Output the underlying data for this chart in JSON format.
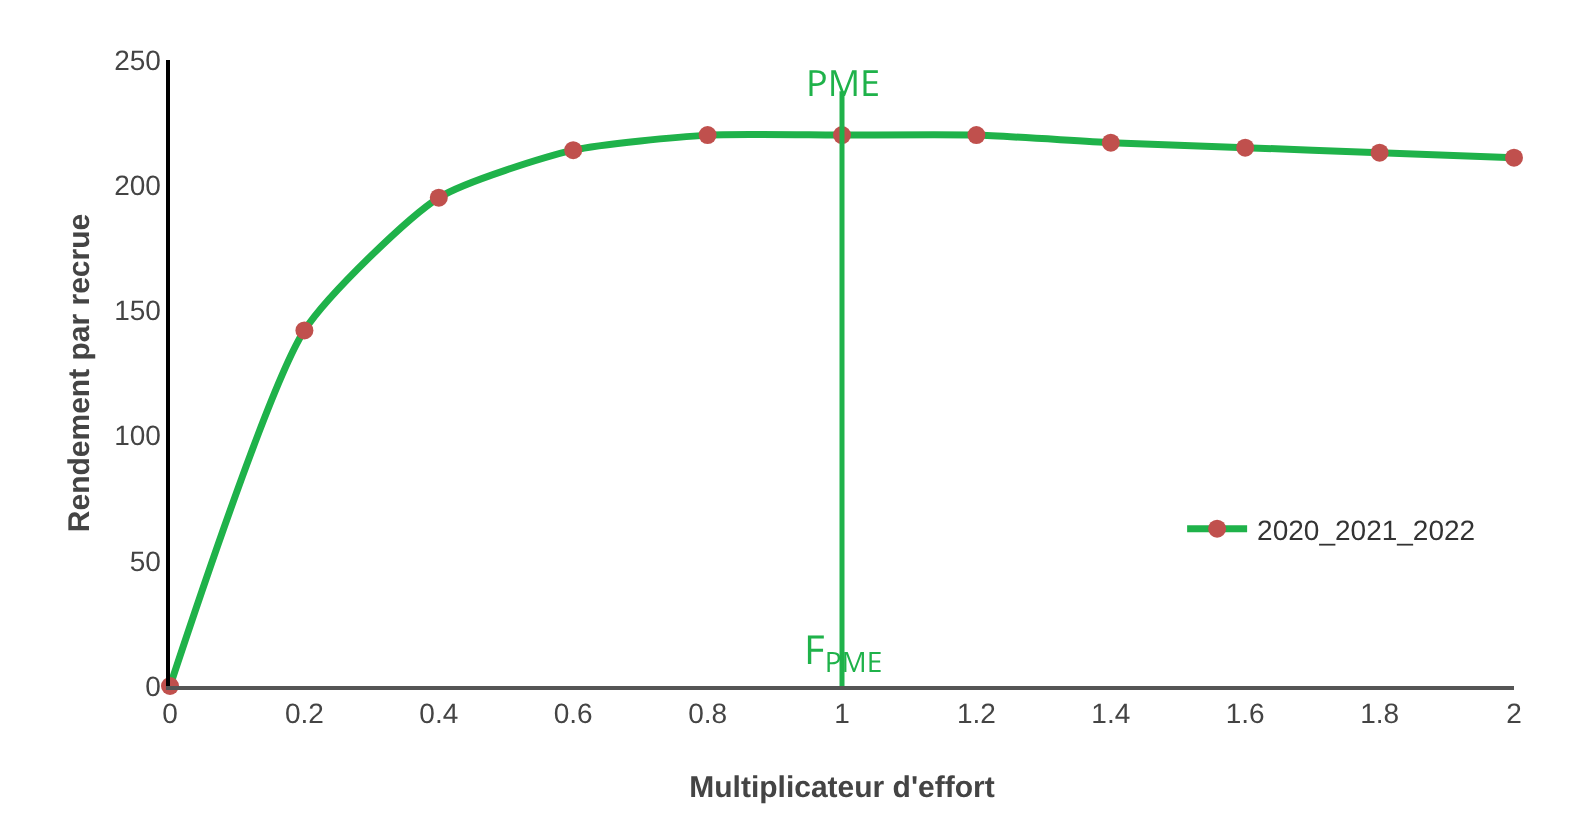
{
  "chart_data": {
    "type": "line",
    "xlabel": "Multiplicateur d'effort",
    "ylabel": "Rendement par recrue",
    "x": [
      0,
      0.2,
      0.4,
      0.6,
      0.8,
      1,
      1.2,
      1.4,
      1.6,
      1.8,
      2
    ],
    "series": [
      {
        "name": "2020_2021_2022",
        "color": "#1fb24a",
        "values": [
          0,
          142,
          195,
          214,
          220,
          220,
          220,
          217,
          215,
          213,
          211
        ]
      }
    ],
    "xlim": [
      0,
      2
    ],
    "xticks": [
      0,
      0.2,
      0.4,
      0.6,
      0.8,
      1,
      1.2,
      1.4,
      1.6,
      1.8,
      2
    ],
    "ylim": [
      0,
      250
    ],
    "yticks": [
      0,
      50,
      100,
      150,
      200,
      250
    ],
    "ref_lines": [
      {
        "axis": "x",
        "value": 1,
        "label": "F$_{PME}$",
        "color": "#1fb24a"
      }
    ],
    "annotations": [
      {
        "text": "PME",
        "x": 1,
        "y": 220
      }
    ],
    "marker": "circle",
    "line_style": "solid",
    "legend": "bottom right",
    "grid": false
  }
}
